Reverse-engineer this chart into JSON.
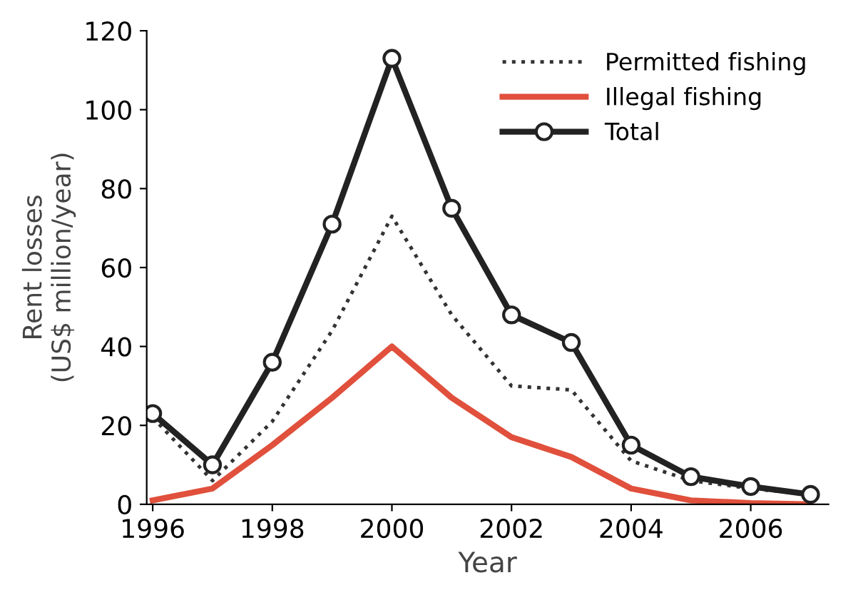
{
  "chart_data": {
    "type": "line",
    "xlabel": "Year",
    "ylabel": "Rent losses\n(US$ million/year)",
    "x": [
      1996,
      1997,
      1998,
      1999,
      2000,
      2001,
      2002,
      2003,
      2004,
      2005,
      2006,
      2007
    ],
    "series": [
      {
        "name": "Permitted fishing",
        "color": "#333333",
        "line_style": "dotted",
        "marker": "none",
        "values": [
          22,
          6,
          21,
          44,
          73,
          48,
          30,
          29,
          11,
          6,
          4,
          2.5
        ]
      },
      {
        "name": "Illegal fishing",
        "color": "#e0503c",
        "line_style": "solid",
        "marker": "none",
        "values": [
          1,
          4,
          15,
          27,
          40,
          27,
          17,
          12,
          4,
          1,
          0.3,
          0
        ]
      },
      {
        "name": "Total",
        "color": "#222222",
        "line_style": "solid",
        "marker": "circle",
        "values": [
          23,
          10,
          36,
          71,
          113,
          75,
          48,
          41,
          15,
          7,
          4.5,
          2.5
        ]
      }
    ],
    "xlim": [
      1995.9,
      2007.3
    ],
    "ylim": [
      0,
      120
    ],
    "xticks": [
      1996,
      1998,
      2000,
      2002,
      2004,
      2006
    ],
    "yticks": [
      0,
      20,
      40,
      60,
      80,
      100,
      120
    ],
    "grid": false,
    "legend": "top right"
  }
}
